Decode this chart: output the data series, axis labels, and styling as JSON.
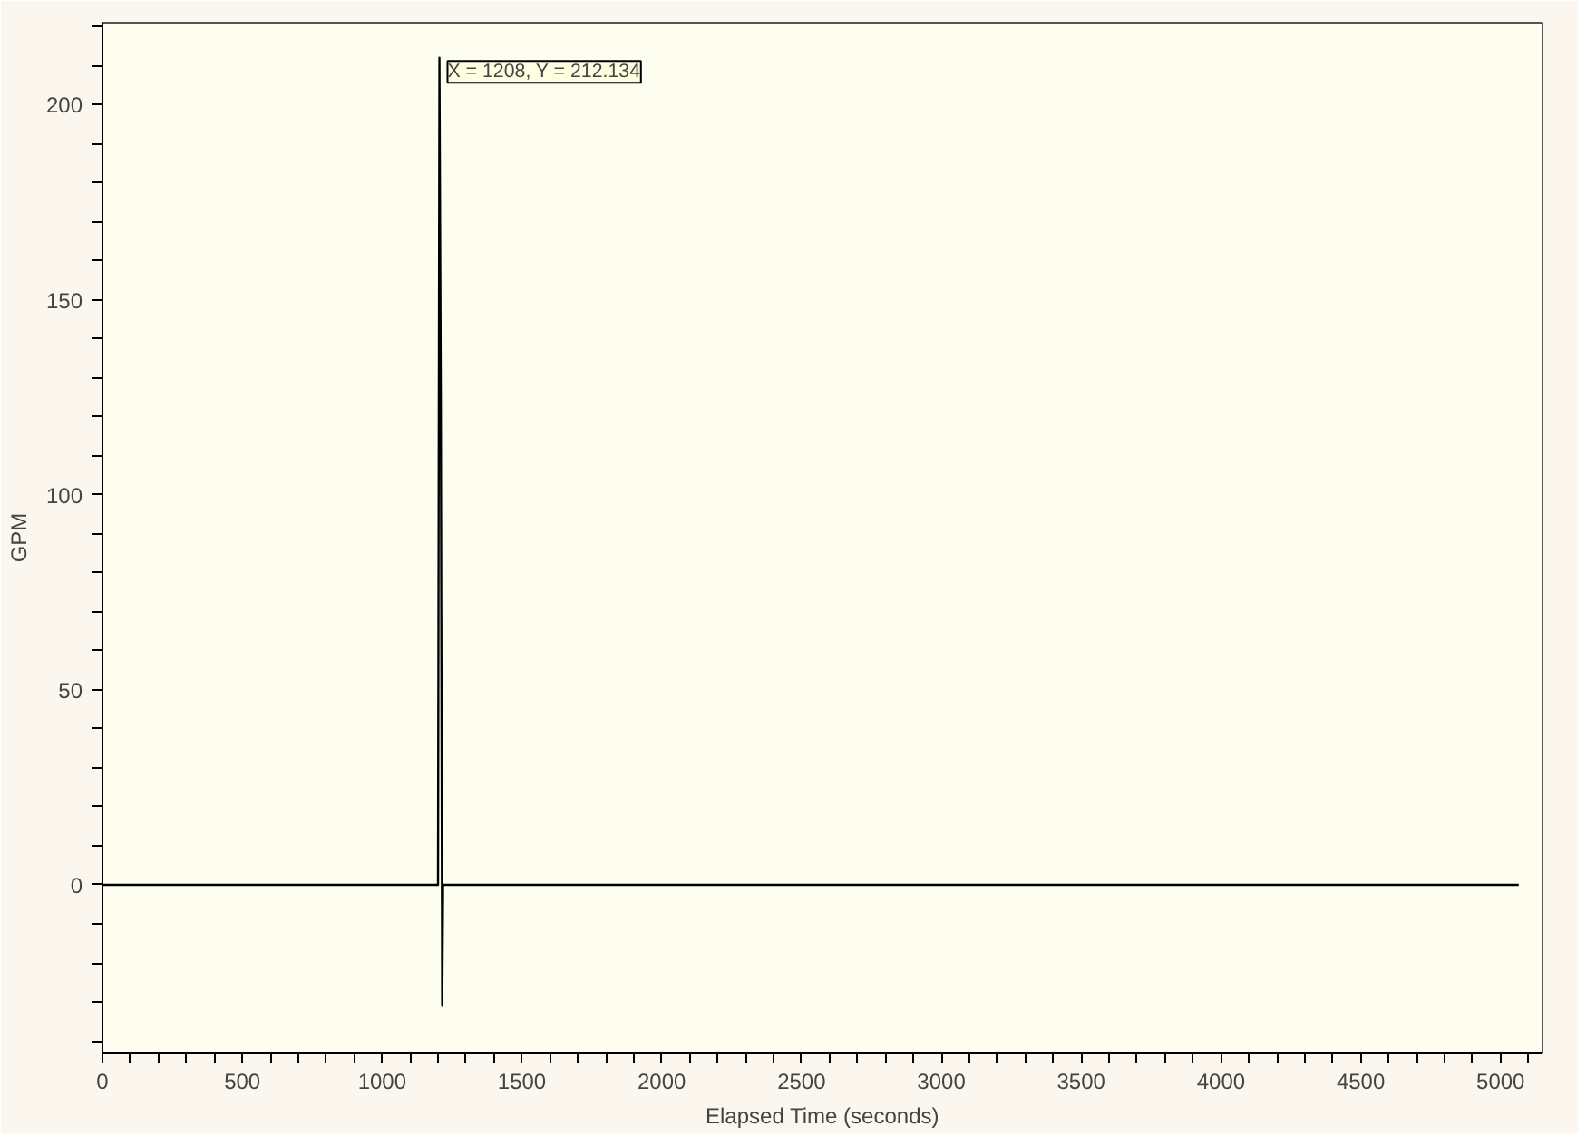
{
  "chart_data": {
    "type": "line",
    "xlabel": "Elapsed Time (seconds)",
    "ylabel": "GPM",
    "x": [
      0,
      1200,
      1205,
      1210,
      1215,
      1218,
      5065
    ],
    "series": [
      {
        "color": "#000000",
        "values": [
          0,
          0,
          212,
          124,
          -31,
          0,
          0
        ]
      }
    ],
    "xlim": [
      0,
      5150
    ],
    "ylim": [
      -43,
      221
    ],
    "xticks": [
      0,
      {
        "value": 100,
        "label": null
      },
      {
        "value": 200,
        "label": null
      },
      {
        "value": 300,
        "label": null
      },
      {
        "value": 400,
        "label": null
      },
      500,
      {
        "value": 600,
        "label": null
      },
      {
        "value": 700,
        "label": null
      },
      {
        "value": 800,
        "label": null
      },
      {
        "value": 900,
        "label": null
      },
      1000,
      {
        "value": 1100,
        "label": null
      },
      {
        "value": 1200,
        "label": null
      },
      {
        "value": 1300,
        "label": null
      },
      {
        "value": 1400,
        "label": null
      },
      1500,
      {
        "value": 1600,
        "label": null
      },
      {
        "value": 1700,
        "label": null
      },
      {
        "value": 1800,
        "label": null
      },
      {
        "value": 1900,
        "label": null
      },
      2000,
      {
        "value": 2100,
        "label": null
      },
      {
        "value": 2200,
        "label": null
      },
      {
        "value": 2300,
        "label": null
      },
      {
        "value": 2400,
        "label": null
      },
      2500,
      {
        "value": 2600,
        "label": null
      },
      {
        "value": 2700,
        "label": null
      },
      {
        "value": 2800,
        "label": null
      },
      {
        "value": 2900,
        "label": null
      },
      3000,
      {
        "value": 3100,
        "label": null
      },
      {
        "value": 3200,
        "label": null
      },
      {
        "value": 3300,
        "label": null
      },
      {
        "value": 3400,
        "label": null
      },
      3500,
      {
        "value": 3600,
        "label": null
      },
      {
        "value": 3700,
        "label": null
      },
      {
        "value": 3800,
        "label": null
      },
      {
        "value": 3900,
        "label": null
      },
      4000,
      {
        "value": 4100,
        "label": null
      },
      {
        "value": 4200,
        "label": null
      },
      {
        "value": 4300,
        "label": null
      },
      {
        "value": 4400,
        "label": null
      },
      4500,
      {
        "value": 4600,
        "label": null
      },
      {
        "value": 4700,
        "label": null
      },
      {
        "value": 4800,
        "label": null
      },
      {
        "value": 4900,
        "label": null
      },
      5000,
      {
        "value": 5100,
        "label": null
      }
    ],
    "yticks": [
      {
        "value": -40,
        "label": null
      },
      {
        "value": -30,
        "label": null
      },
      {
        "value": -20,
        "label": null
      },
      {
        "value": -10,
        "label": null
      },
      0,
      {
        "value": 10,
        "label": null
      },
      {
        "value": 20,
        "label": null
      },
      {
        "value": 30,
        "label": null
      },
      {
        "value": 40,
        "label": null
      },
      50,
      {
        "value": 60,
        "label": null
      },
      {
        "value": 70,
        "label": null
      },
      {
        "value": 80,
        "label": null
      },
      {
        "value": 90,
        "label": null
      },
      100,
      {
        "value": 110,
        "label": null
      },
      {
        "value": 120,
        "label": null
      },
      {
        "value": 130,
        "label": null
      },
      {
        "value": 140,
        "label": null
      },
      150,
      {
        "value": 160,
        "label": null
      },
      {
        "value": 170,
        "label": null
      },
      {
        "value": 180,
        "label": null
      },
      {
        "value": 190,
        "label": null
      },
      200,
      {
        "value": 210,
        "label": null
      },
      {
        "value": 220,
        "label": null
      }
    ],
    "annotations": [
      {
        "text": "X = 1208, Y = 212.134",
        "x": 1208,
        "y": 212.134
      }
    ],
    "grid": false,
    "marker": "none",
    "line_style": "solid"
  }
}
